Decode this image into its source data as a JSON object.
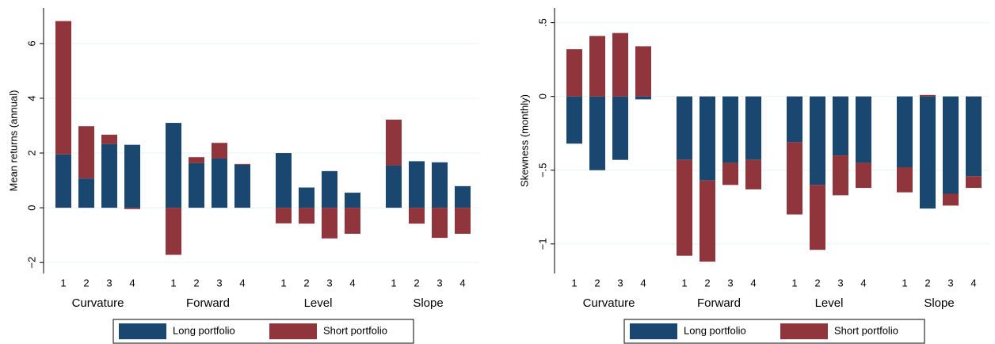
{
  "chart_data": [
    {
      "type": "bar",
      "stacked": true,
      "ylabel": "Mean returns (annual)",
      "groups": [
        "Curvature",
        "Forward",
        "Level",
        "Slope"
      ],
      "categories": [
        "1",
        "2",
        "3",
        "4",
        "1",
        "2",
        "3",
        "4",
        "1",
        "2",
        "3",
        "4",
        "1",
        "2",
        "3",
        "4"
      ],
      "series": [
        {
          "name": "Long portfolio",
          "color": "#1a476f",
          "values": [
            1.95,
            1.07,
            2.33,
            2.3,
            3.1,
            1.63,
            1.8,
            1.57,
            2.0,
            0.74,
            1.34,
            0.55,
            1.55,
            1.7,
            1.66,
            0.79
          ]
        },
        {
          "name": "Short portfolio",
          "color": "#90353b",
          "values": [
            4.87,
            1.91,
            0.34,
            -0.05,
            -1.72,
            0.22,
            0.57,
            0.03,
            -0.57,
            -0.58,
            -1.12,
            -0.95,
            1.67,
            -0.58,
            -1.1,
            -0.95
          ]
        }
      ],
      "ylim": [
        -2.4,
        7.3
      ],
      "yticks": [
        {
          "value": -2,
          "label": "−2"
        },
        0,
        2,
        4,
        6
      ],
      "grid": true,
      "legend": "bottom"
    },
    {
      "type": "bar",
      "stacked": true,
      "ylabel": "Skewness (monthly)",
      "groups": [
        "Curvature",
        "Forward",
        "Level",
        "Slope"
      ],
      "categories": [
        "1",
        "2",
        "3",
        "4",
        "1",
        "2",
        "3",
        "4",
        "1",
        "2",
        "3",
        "4",
        "1",
        "2",
        "3",
        "4"
      ],
      "series": [
        {
          "name": "Long portfolio",
          "color": "#1a476f",
          "values": [
            -0.32,
            -0.5,
            -0.43,
            -0.02,
            -0.43,
            -0.57,
            -0.45,
            -0.43,
            -0.31,
            -0.6,
            -0.4,
            -0.45,
            -0.48,
            -0.76,
            -0.66,
            -0.54
          ]
        },
        {
          "name": "Short portfolio",
          "color": "#90353b",
          "values": [
            0.32,
            0.41,
            0.43,
            0.34,
            -0.65,
            -0.55,
            -0.15,
            -0.2,
            -0.49,
            -0.44,
            -0.27,
            -0.17,
            -0.17,
            0.01,
            -0.08,
            -0.08
          ]
        }
      ],
      "ylim": [
        -1.2,
        0.6
      ],
      "yticks": [
        {
          "value": 0.5,
          "label": ".5"
        },
        0,
        {
          "value": -0.5,
          "label": "−.5"
        },
        {
          "value": -1,
          "label": "−1"
        }
      ],
      "grid": true,
      "legend": "bottom"
    }
  ]
}
